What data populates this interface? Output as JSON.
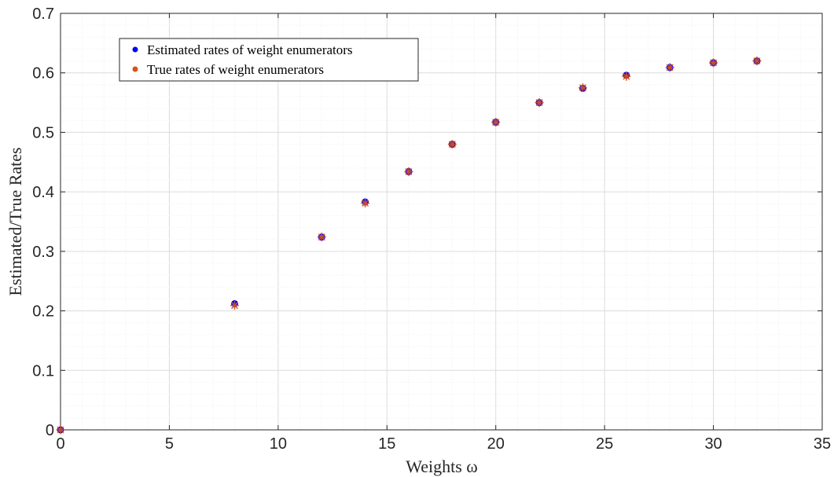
{
  "chart_data": {
    "type": "scatter",
    "xlabel": "Weights ω",
    "ylabel": "Estimated/True Rates",
    "xlim": [
      0,
      35
    ],
    "ylim": [
      0,
      0.7
    ],
    "xticks": [
      0,
      5,
      10,
      15,
      20,
      25,
      30,
      35
    ],
    "yticks": [
      0,
      0.1,
      0.2,
      0.3,
      0.4,
      0.5,
      0.6,
      0.7
    ],
    "xtick_labels": [
      "0",
      "5",
      "10",
      "15",
      "20",
      "25",
      "30",
      "35"
    ],
    "ytick_labels": [
      "0",
      "0.1",
      "0.2",
      "0.3",
      "0.4",
      "0.5",
      "0.6",
      "0.7"
    ],
    "grid": "major and minor, dotted",
    "legend_position": "top-left",
    "series": [
      {
        "name": "Estimated rates of weight enumerators",
        "marker": "filled-circle",
        "color": "#0000ff",
        "x": [
          0,
          8,
          12,
          14,
          16,
          18,
          20,
          22,
          24,
          26,
          28,
          30,
          32
        ],
        "y": [
          0,
          0.212,
          0.324,
          0.383,
          0.434,
          0.48,
          0.517,
          0.55,
          0.574,
          0.596,
          0.609,
          0.617,
          0.62
        ]
      },
      {
        "name": "True rates of weight enumerators",
        "marker": "asterisk",
        "color": "#d95319",
        "x": [
          0,
          8,
          12,
          14,
          16,
          18,
          20,
          22,
          24,
          26,
          28,
          30,
          32
        ],
        "y": [
          0,
          0.209,
          0.324,
          0.381,
          0.434,
          0.48,
          0.517,
          0.55,
          0.575,
          0.594,
          0.609,
          0.617,
          0.62
        ]
      }
    ]
  }
}
